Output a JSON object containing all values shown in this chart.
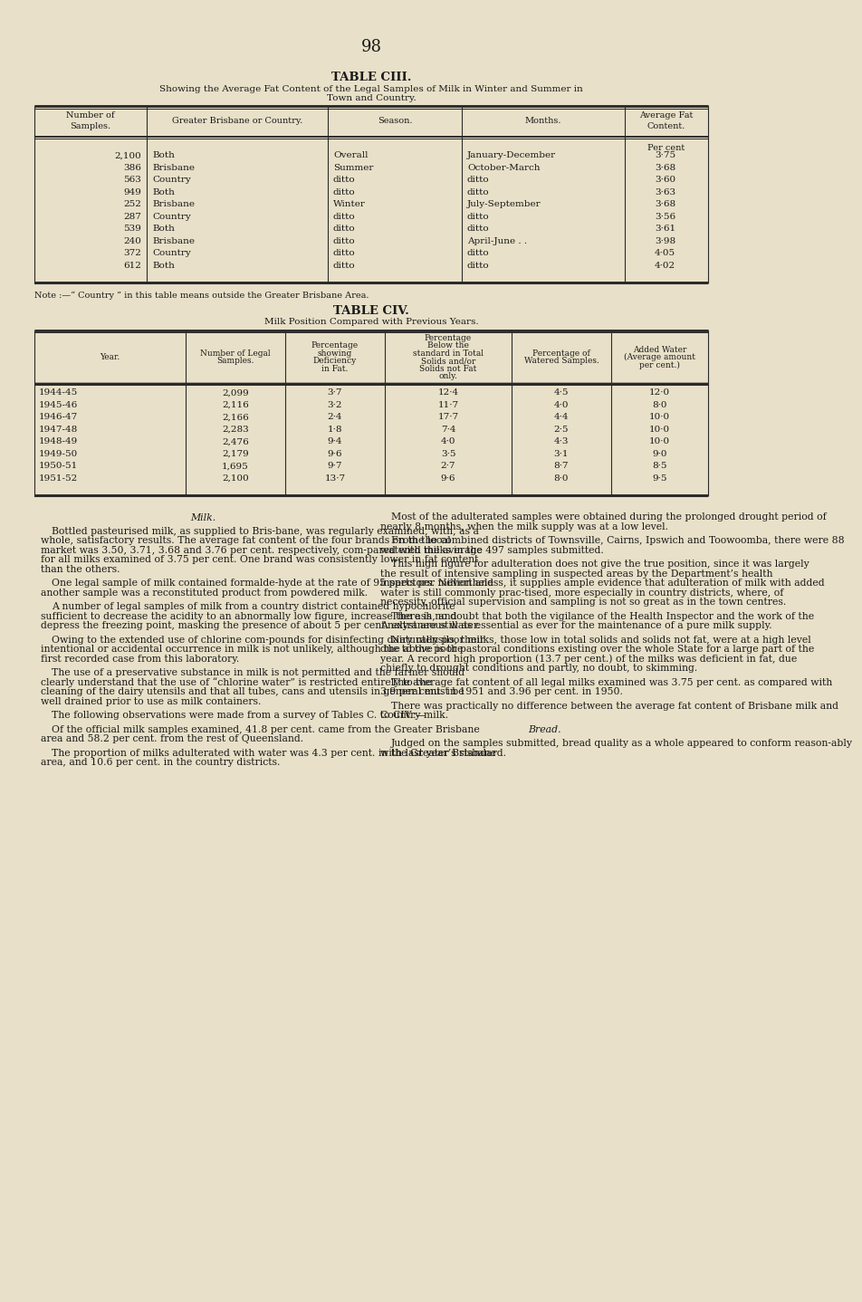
{
  "bg_color": "#e8e0c8",
  "page_number": "98",
  "table_ciii_title": "TABLE CIII.",
  "table_ciii_subtitle1": "Showing the Average Fat Content of the Legal Samples of Milk in Winter and Summer in",
  "table_ciii_subtitle2": "Town and Country.",
  "table_civ_title": "TABLE CIV.",
  "table_civ_subtitle": "Milk Position Compared with Previous Years.",
  "table_ciii_rows": [
    [
      "2,100",
      "Both",
      "Overall",
      "January-December",
      "3·75"
    ],
    [
      "386",
      "Brisbane",
      "Summer",
      "October-March",
      "3·68"
    ],
    [
      "563",
      "Country",
      "ditto",
      "ditto",
      "3·60"
    ],
    [
      "949",
      "Both",
      "ditto",
      "ditto",
      "3·63"
    ],
    [
      "252",
      "Brisbane",
      "Winter",
      "July-September",
      "3·68"
    ],
    [
      "287",
      "Country",
      "ditto",
      "ditto",
      "3·56"
    ],
    [
      "539",
      "Both",
      "ditto",
      "ditto",
      "3·61"
    ],
    [
      "240",
      "Brisbane",
      "ditto",
      "April-June . .",
      "3·98"
    ],
    [
      "372",
      "Country",
      "ditto",
      "ditto",
      "4·05"
    ],
    [
      "612",
      "Both",
      "ditto",
      "ditto",
      "4·02"
    ]
  ],
  "table_ciii_note": "Note :—“ Country ” in this table means outside the Greater Brisbane Area.",
  "table_civ_rows": [
    [
      "1944-45",
      "2,099",
      "3·7",
      "12·4",
      "4·5",
      "12·0"
    ],
    [
      "1945-46",
      "2,116",
      "3·2",
      "11·7",
      "4·0",
      "8·0"
    ],
    [
      "1946-47",
      "2,166",
      "2·4",
      "17·7",
      "4·4",
      "10·0"
    ],
    [
      "1947-48",
      "2,283",
      "1·8",
      "7·4",
      "2·5",
      "10·0"
    ],
    [
      "1948-49",
      "2,476",
      "9·4",
      "4·0",
      "4·3",
      "10·0"
    ],
    [
      "1949-50",
      "2,179",
      "9·6",
      "3·5",
      "3·1",
      "9·0"
    ],
    [
      "1950-51",
      "1,695",
      "9·7",
      "2·7",
      "8·7",
      "8·5"
    ],
    [
      "1951-52",
      "2,100",
      "13·7",
      "9·6",
      "8·0",
      "9·5"
    ]
  ],
  "left_col_paragraphs": [
    {
      "style": "italic_center",
      "text": "Milk."
    },
    {
      "style": "indent",
      "text": "Bottled pasteurised milk, as supplied to Bris-bane, was regularly examined, with, as a whole, satisfactory results.  The average fat content of the four brands on the local market was 3.50, 3.71, 3.68 and 3.76 per cent. respectively, com-pared with the average for all milks examined of 3.75 per cent.  One brand was consistently lower in fat content than the others."
    },
    {
      "style": "indent",
      "text": "One legal sample of milk contained formalde-hyde at the rate of 95 parts per million and another sample was a reconstituted product from powdered milk."
    },
    {
      "style": "indent",
      "text": "A number of legal samples of milk from a country district contained hypochlorite sufficient to decrease the acidity to an abnormally low figure, increase the ash, and depress the freezing point, masking the presence of about 5 per cent. extraneous water."
    },
    {
      "style": "indent",
      "text": "Owing to the extended use of chlorine com-pounds for disinfecting dairy utensils, their intentional or accidental occurrence in milk is not unlikely, although the above is the first recorded case from this laboratory."
    },
    {
      "style": "indent",
      "text": "The use of a preservative substance in milk is not permitted and the farmer should clearly understand that the use of “chlorine water” is restricted entirely to the cleaning of the dairy utensils and that all tubes, cans and utensils in general must be well drained prior to use as milk containers."
    },
    {
      "style": "indent",
      "text": "The following observations were made from a survey of Tables C. to CIV.:—"
    },
    {
      "style": "indent",
      "text": "Of the official milk samples examined, 41.8 per cent. came from the Greater Brisbane area and 58.2 per cent. from the rest of Queensland."
    },
    {
      "style": "indent",
      "text": "The proportion of milks adulterated with water was 4.3 per cent. in the Greater Brisbane area, and 10.6 per cent. in the country districts."
    }
  ],
  "right_col_paragraphs": [
    {
      "style": "indent",
      "text": "Most of the adulterated samples were obtained during the prolonged drought period of nearly 8 months, when the milk supply was at a low level."
    },
    {
      "style": "indent",
      "text": "From the combined districts of Townsville, Cairns, Ipswich and Toowoomba, there were 88 watered milks in the 497 samples submitted."
    },
    {
      "style": "indent",
      "text": "This high figure for adulteration does not give the true position, since it was largely the result of intensive sampling in suspected areas by the Department’s health inspectors.  Nevertheless, it supplies ample evidence that adulteration of milk with added water is still commonly prac-tised, more especially in country districts, where, of necessity, official supervision and sampling is not so great as in the town centres."
    },
    {
      "style": "indent",
      "text": "There is no doubt that both the vigilance of the Health Inspector and the work of the Analyst are still as essential as ever for the maintenance of a pure milk supply."
    },
    {
      "style": "indent",
      "text": "Naturally poor milks, those low in total solids and solids not fat, were at a high level due to the poor pastoral conditions existing over the whole State for a large part of the year.  A record high proportion (13.7 per cent.) of the milks was deficient in fat, due chiefly to drought conditions and partly, no doubt, to skimming."
    },
    {
      "style": "indent",
      "text": "The average fat content of all legal milks examined was 3.75 per cent. as compared with 3.9 per cent. in 1951 and 3.96 per cent. in 1950."
    },
    {
      "style": "indent",
      "text": "There was practically no difference between the average fat content of Brisbane milk and Country milk."
    },
    {
      "style": "italic_center",
      "text": "Bread."
    },
    {
      "style": "indent",
      "text": "Judged on the samples submitted, bread quality as a whole appeared to conform reason-ably with last year’s standard."
    }
  ]
}
